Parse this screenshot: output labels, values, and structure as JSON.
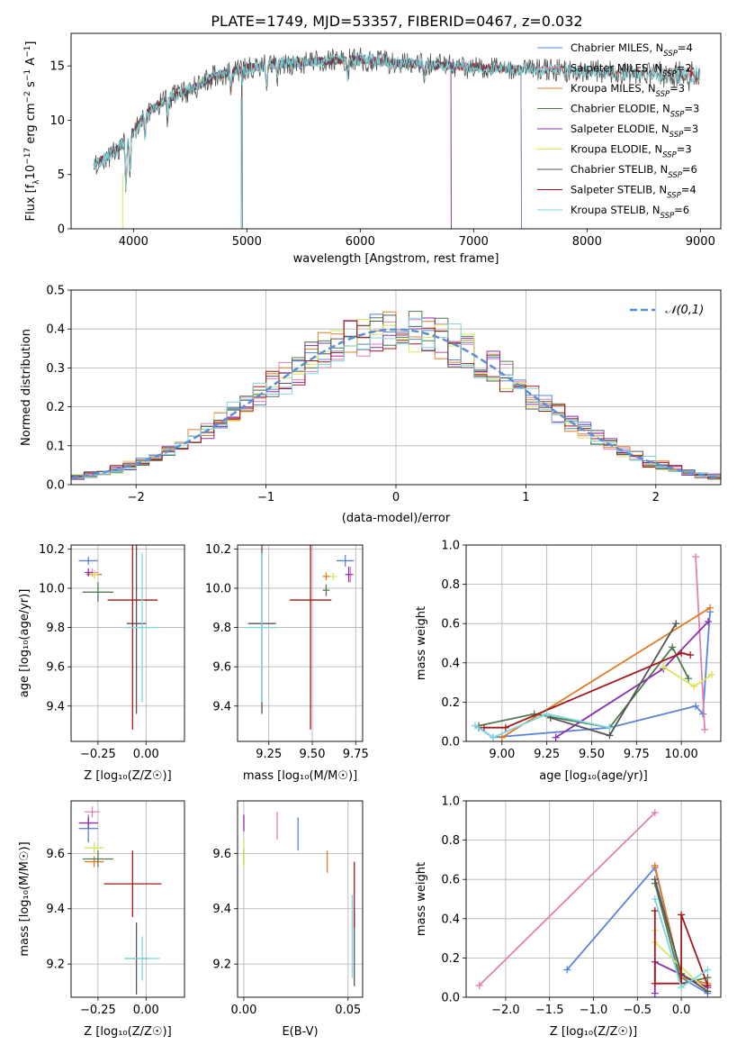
{
  "figure": {
    "title": "PLATE=1749, MJD=53357, FIBERID=0467, z=0.032"
  },
  "colors": {
    "chabrier_miles": "#5b84d8",
    "salpeter_miles": "#e47fb4",
    "kroupa_miles": "#e07c24",
    "chabrier_elodie": "#507a50",
    "salpeter_elodie": "#8a2fb0",
    "kroupa_elodie": "#d7e65a",
    "chabrier_stelib": "#555555",
    "salpeter_stelib": "#a31919",
    "kroupa_stelib": "#7ed6db",
    "normal_curve": "#5b8fd6"
  },
  "chart_data": [
    {
      "id": "spectrum",
      "type": "line",
      "xlabel": "wavelength [Angstrom, rest frame]",
      "ylabel": "Flux [f_λ10^−17 erg cm^−2 s^−1 A^−1]",
      "xlim": [
        3450,
        9180
      ],
      "ylim": [
        0,
        18
      ],
      "xticks": [
        4000,
        5000,
        6000,
        7000,
        8000,
        9000
      ],
      "yticks": [
        0,
        5,
        10,
        15
      ],
      "legend_position": "right",
      "legend": [
        {
          "model": "chabrier_miles",
          "label": "Chabrier MILES, N",
          "sub": "SSP",
          "suffix": "=4"
        },
        {
          "model": "salpeter_miles",
          "label": "Salpeter MILES, N",
          "sub": "SSP",
          "suffix": "=2"
        },
        {
          "model": "kroupa_miles",
          "label": "Kroupa MILES, N",
          "sub": "SSP",
          "suffix": "=3"
        },
        {
          "model": "chabrier_elodie",
          "label": "Chabrier ELODIE, N",
          "sub": "SSP",
          "suffix": "=3"
        },
        {
          "model": "salpeter_elodie",
          "label": "Salpeter ELODIE, N",
          "sub": "SSP",
          "suffix": "=3"
        },
        {
          "model": "kroupa_elodie",
          "label": "Kroupa ELODIE, N",
          "sub": "SSP",
          "suffix": "=3"
        },
        {
          "model": "chabrier_stelib",
          "label": "Chabrier STELIB, N",
          "sub": "SSP",
          "suffix": "=6"
        },
        {
          "model": "salpeter_stelib",
          "label": "Salpeter STELIB, N",
          "sub": "SSP",
          "suffix": "=4"
        },
        {
          "model": "kroupa_stelib",
          "label": "Kroupa STELIB, N",
          "sub": "SSP",
          "suffix": "=6"
        }
      ],
      "continuum": [
        [
          3650,
          6.0
        ],
        [
          3800,
          6.8
        ],
        [
          3950,
          8.2
        ],
        [
          4100,
          10.5
        ],
        [
          4300,
          12.0
        ],
        [
          4500,
          12.8
        ],
        [
          4700,
          14.0
        ],
        [
          5000,
          14.8
        ],
        [
          5300,
          15.2
        ],
        [
          5600,
          15.4
        ],
        [
          6000,
          15.6
        ],
        [
          6400,
          15.2
        ],
        [
          6800,
          15.0
        ],
        [
          7100,
          14.8
        ],
        [
          7400,
          14.7
        ],
        [
          7700,
          14.6
        ],
        [
          8000,
          14.5
        ],
        [
          8500,
          14.3
        ],
        [
          9000,
          14.0
        ]
      ],
      "model_xmax": {
        "chabrier_miles": 7420,
        "salpeter_miles": 7420,
        "kroupa_miles": 7420,
        "salpeter_elodie": 6800,
        "kroupa_elodie": 6800,
        "chabrier_elodie": 6800
      },
      "absorption_lines": [
        [
          3934,
          4.5
        ],
        [
          3969,
          3.5
        ],
        [
          4102,
          2.0
        ],
        [
          4300,
          2.0
        ],
        [
          4861,
          1.5
        ],
        [
          4960,
          1.0
        ],
        [
          5175,
          2.0
        ],
        [
          5270,
          1.0
        ],
        [
          5890,
          1.5
        ],
        [
          6563,
          1.5
        ]
      ]
    },
    {
      "id": "residuals",
      "type": "histogram",
      "xlabel": "(data-model)/error",
      "ylabel": "Normed distribution",
      "xlim": [
        -2.5,
        2.5
      ],
      "ylim": [
        0,
        0.5
      ],
      "xticks": [
        -2,
        -1,
        0,
        1,
        2
      ],
      "yticks": [
        0.0,
        0.1,
        0.2,
        0.3,
        0.4,
        0.5
      ],
      "bin_width": 0.1,
      "curve_label": "𝒩(0,1)",
      "legend_position": "top-right"
    },
    {
      "id": "age_vs_Z",
      "type": "scatter",
      "xlabel": "Z [log₁₀(Z/Z☉)]",
      "ylabel": "age  [log₁₀(age/yr)]",
      "xlim": [
        -0.39,
        0.2
      ],
      "ylim": [
        9.22,
        10.22
      ],
      "xticks": [
        -0.25,
        0.0
      ],
      "yticks": [
        9.4,
        9.6,
        9.8,
        10.0,
        10.2
      ],
      "points": [
        {
          "model": "chabrier_miles",
          "x": -0.3,
          "y": 10.14,
          "xerr": 0.05,
          "yerr": 0.02
        },
        {
          "model": "salpeter_miles",
          "x": -0.28,
          "y": 10.08,
          "xerr": 0.03,
          "yerr": 0.02
        },
        {
          "model": "kroupa_miles",
          "x": -0.27,
          "y": 10.07,
          "xerr": 0.04,
          "yerr": 0.02
        },
        {
          "model": "chabrier_elodie",
          "x": -0.25,
          "y": 9.98,
          "xerr": 0.08,
          "yerr": 0.05
        },
        {
          "model": "salpeter_elodie",
          "x": -0.3,
          "y": 10.08,
          "xerr": 0.02,
          "yerr": 0.02
        },
        {
          "model": "kroupa_elodie",
          "x": -0.27,
          "y": 10.07,
          "xerr": 0.02,
          "yerr": 0.02
        },
        {
          "model": "chabrier_stelib",
          "x": -0.05,
          "y": 9.82,
          "xerr": 0.05,
          "yerr": 0.46
        },
        {
          "model": "salpeter_stelib",
          "x": -0.07,
          "y": 9.94,
          "xerr": 0.13,
          "yerr": 0.66
        },
        {
          "model": "kroupa_stelib",
          "x": -0.02,
          "y": 9.8,
          "xerr": 0.09,
          "yerr": 0.38
        }
      ]
    },
    {
      "id": "age_vs_mass",
      "type": "scatter",
      "xlabel": "mass [log₁₀(M/M☉)]",
      "ylabel": "",
      "xlim": [
        9.07,
        9.79
      ],
      "ylim": [
        9.22,
        10.22
      ],
      "xticks": [
        9.25,
        9.5,
        9.75
      ],
      "yticks": [
        9.4,
        9.6,
        9.8,
        10.0,
        10.2
      ],
      "points": [
        {
          "model": "chabrier_miles",
          "x": 9.69,
          "y": 10.14,
          "xerr": 0.05,
          "yerr": 0.03
        },
        {
          "model": "salpeter_miles",
          "x": 9.72,
          "y": 10.07,
          "xerr": 0.02,
          "yerr": 0.04
        },
        {
          "model": "kroupa_miles",
          "x": 9.58,
          "y": 10.06,
          "xerr": 0.02,
          "yerr": 0.02
        },
        {
          "model": "chabrier_elodie",
          "x": 9.58,
          "y": 9.99,
          "xerr": 0.02,
          "yerr": 0.03
        },
        {
          "model": "salpeter_elodie",
          "x": 9.71,
          "y": 10.07,
          "xerr": 0.02,
          "yerr": 0.04
        },
        {
          "model": "kroupa_elodie",
          "x": 9.62,
          "y": 10.06,
          "xerr": 0.02,
          "yerr": 0.02
        },
        {
          "model": "chabrier_stelib",
          "x": 9.21,
          "y": 9.82,
          "xerr": 0.08,
          "yerr": 0.46
        },
        {
          "model": "salpeter_stelib",
          "x": 9.49,
          "y": 9.94,
          "xerr": 0.12,
          "yerr": 0.66
        },
        {
          "model": "kroupa_stelib",
          "x": 9.21,
          "y": 9.8,
          "xerr": 0.09,
          "yerr": 0.38
        }
      ]
    },
    {
      "id": "massweight_vs_age",
      "type": "line",
      "xlabel": "age  [log₁₀(age/yr)]",
      "ylabel": "mass weight",
      "xlim": [
        8.8,
        10.22
      ],
      "ylim": [
        0,
        1
      ],
      "xticks": [
        9.0,
        9.25,
        9.5,
        9.75,
        10.0
      ],
      "yticks": [
        0.0,
        0.2,
        0.4,
        0.6,
        0.8,
        1.0
      ],
      "series": [
        {
          "model": "chabrier_miles",
          "x": [
            8.87,
            8.95,
            9.6,
            10.08,
            10.12,
            10.16
          ],
          "y": [
            0.07,
            0.02,
            0.07,
            0.18,
            0.14,
            0.66
          ]
        },
        {
          "model": "salpeter_miles",
          "x": [
            10.08,
            10.13
          ],
          "y": [
            0.94,
            0.06
          ]
        },
        {
          "model": "kroupa_miles",
          "x": [
            9.0,
            10.16
          ],
          "y": [
            0.02,
            0.68
          ]
        },
        {
          "model": "chabrier_elodie",
          "x": [
            8.87,
            9.18,
            9.6,
            9.95,
            10.04
          ],
          "y": [
            0.08,
            0.14,
            0.07,
            0.48,
            0.32
          ]
        },
        {
          "model": "salpeter_elodie",
          "x": [
            9.3,
            9.9,
            10.15
          ],
          "y": [
            0.02,
            0.37,
            0.61
          ]
        },
        {
          "model": "kroupa_elodie",
          "x": [
            9.9,
            10.07,
            10.17
          ],
          "y": [
            0.38,
            0.28,
            0.34
          ]
        },
        {
          "model": "chabrier_stelib",
          "x": [
            9.27,
            9.6,
            9.97
          ],
          "y": [
            0.12,
            0.03,
            0.6
          ]
        },
        {
          "model": "salpeter_stelib",
          "x": [
            8.9,
            9.02,
            10.0,
            10.05
          ],
          "y": [
            0.07,
            0.07,
            0.45,
            0.44
          ]
        },
        {
          "model": "kroupa_stelib",
          "x": [
            8.85,
            8.95,
            9.25,
            9.6
          ],
          "y": [
            0.08,
            0.02,
            0.14,
            0.07
          ]
        }
      ]
    },
    {
      "id": "mass_vs_Z",
      "type": "scatter",
      "xlabel": "Z [log₁₀(Z/Z☉)]",
      "ylabel": "mass [log₁₀(M/M☉)]",
      "xlim": [
        -0.39,
        0.2
      ],
      "ylim": [
        9.08,
        9.79
      ],
      "xticks": [
        -0.25,
        0.0
      ],
      "yticks": [
        9.2,
        9.4,
        9.6
      ],
      "points": [
        {
          "model": "chabrier_miles",
          "x": -0.3,
          "y": 9.69,
          "xerr": 0.05,
          "yerr": 0.05
        },
        {
          "model": "salpeter_miles",
          "x": -0.28,
          "y": 9.75,
          "xerr": 0.04,
          "yerr": 0.02
        },
        {
          "model": "kroupa_miles",
          "x": -0.27,
          "y": 9.57,
          "xerr": 0.05,
          "yerr": 0.02
        },
        {
          "model": "chabrier_elodie",
          "x": -0.25,
          "y": 9.58,
          "xerr": 0.08,
          "yerr": 0.03
        },
        {
          "model": "salpeter_elodie",
          "x": -0.3,
          "y": 9.71,
          "xerr": 0.05,
          "yerr": 0.02
        },
        {
          "model": "kroupa_elodie",
          "x": -0.27,
          "y": 9.62,
          "xerr": 0.05,
          "yerr": 0.02
        },
        {
          "model": "chabrier_stelib",
          "x": -0.05,
          "y": 9.22,
          "xerr": 0.06,
          "yerr": 0.13
        },
        {
          "model": "salpeter_stelib",
          "x": -0.07,
          "y": 9.49,
          "xerr": 0.15,
          "yerr": 0.12
        },
        {
          "model": "kroupa_stelib",
          "x": -0.02,
          "y": 9.22,
          "xerr": 0.09,
          "yerr": 0.08
        }
      ]
    },
    {
      "id": "mass_vs_ebv",
      "type": "scatter",
      "xlabel": "E(B-V)",
      "ylabel": "",
      "xlim": [
        -0.003,
        0.057
      ],
      "ylim": [
        9.08,
        9.79
      ],
      "xticks": [
        0.0,
        0.05
      ],
      "yticks": [
        9.2,
        9.4,
        9.6
      ],
      "points": [
        {
          "model": "chabrier_miles",
          "x": 0.026,
          "y": 9.67,
          "xerr": 0,
          "yerr": 0.06
        },
        {
          "model": "salpeter_miles",
          "x": 0.016,
          "y": 9.7,
          "xerr": 0,
          "yerr": 0.05
        },
        {
          "model": "kroupa_miles",
          "x": 0.04,
          "y": 9.57,
          "xerr": 0,
          "yerr": 0.04
        },
        {
          "model": "chabrier_elodie",
          "x": 0.0,
          "y": 9.59,
          "xerr": 0,
          "yerr": 0.03
        },
        {
          "model": "salpeter_elodie",
          "x": 0.0,
          "y": 9.71,
          "xerr": 0,
          "yerr": 0.03
        },
        {
          "model": "kroupa_elodie",
          "x": 0.0,
          "y": 9.6,
          "xerr": 0,
          "yerr": 0.05
        },
        {
          "model": "chabrier_stelib",
          "x": 0.053,
          "y": 9.26,
          "xerr": 0,
          "yerr": 0.14
        },
        {
          "model": "salpeter_stelib",
          "x": 0.053,
          "y": 9.45,
          "xerr": 0,
          "yerr": 0.12
        },
        {
          "model": "kroupa_stelib",
          "x": 0.052,
          "y": 9.3,
          "xerr": 0,
          "yerr": 0.15
        }
      ]
    },
    {
      "id": "massweight_vs_Z",
      "type": "line",
      "xlabel": "Z [log₁₀(Z/Z☉)]",
      "ylabel": "mass weight",
      "xlim": [
        -2.45,
        0.45
      ],
      "ylim": [
        0,
        1
      ],
      "xticks": [
        -2.0,
        -1.5,
        -1.0,
        -0.5,
        0.0
      ],
      "yticks": [
        0.0,
        0.2,
        0.4,
        0.6,
        0.8,
        1.0
      ],
      "series": [
        {
          "model": "chabrier_miles",
          "x": [
            -1.3,
            -0.3,
            0.0,
            0.3
          ],
          "y": [
            0.14,
            0.66,
            0.1,
            0.02
          ]
        },
        {
          "model": "salpeter_miles",
          "x": [
            -2.3,
            -0.3
          ],
          "y": [
            0.06,
            0.94
          ]
        },
        {
          "model": "kroupa_miles",
          "x": [
            -0.3,
            0.0,
            0.3
          ],
          "y": [
            0.67,
            0.1,
            0.07
          ]
        },
        {
          "model": "chabrier_elodie",
          "x": [
            -0.3,
            0.0,
            0.3
          ],
          "y": [
            0.58,
            0.07,
            0.1
          ]
        },
        {
          "model": "salpeter_elodie",
          "x": [
            -0.3,
            -0.3,
            0.3
          ],
          "y": [
            0.02,
            0.18,
            0.05
          ]
        },
        {
          "model": "kroupa_elodie",
          "x": [
            -0.3,
            -0.3,
            0.3
          ],
          "y": [
            0.34,
            0.28,
            0.03
          ]
        },
        {
          "model": "chabrier_stelib",
          "x": [
            -0.3,
            0.0,
            0.3
          ],
          "y": [
            0.6,
            0.12,
            0.03
          ]
        },
        {
          "model": "salpeter_stelib",
          "x": [
            -0.3,
            -0.3,
            0.0,
            0.0,
            0.3
          ],
          "y": [
            0.44,
            0.07,
            0.07,
            0.42,
            0.06
          ]
        },
        {
          "model": "kroupa_stelib",
          "x": [
            -0.3,
            0.0,
            0.3
          ],
          "y": [
            0.5,
            0.05,
            0.14
          ]
        }
      ]
    }
  ]
}
